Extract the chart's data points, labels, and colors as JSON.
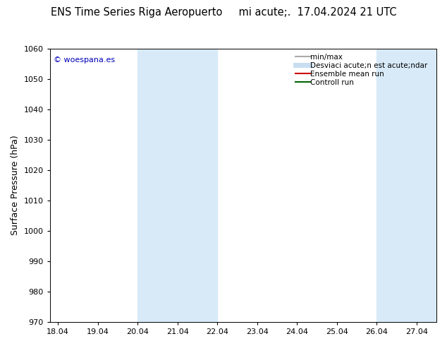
{
  "title": "ENS Time Series Riga Aeropuerto     mi acute;.  17.04.2024 21 UTC",
  "ylabel": "Surface Pressure (hPa)",
  "ylim": [
    970,
    1060
  ],
  "yticks": [
    970,
    980,
    990,
    1000,
    1010,
    1020,
    1030,
    1040,
    1050,
    1060
  ],
  "xtick_labels": [
    "18.04",
    "19.04",
    "20.04",
    "21.04",
    "22.04",
    "23.04",
    "24.04",
    "25.04",
    "26.04",
    "27.04"
  ],
  "xtick_positions": [
    0,
    1,
    2,
    3,
    4,
    5,
    6,
    7,
    8,
    9
  ],
  "xlim": [
    -0.2,
    9.5
  ],
  "shade_bands": [
    {
      "x_start": 2.0,
      "x_end": 4.0,
      "color": "#D8EAF8"
    },
    {
      "x_start": 8.0,
      "x_end": 9.5,
      "color": "#D8EAF8"
    }
  ],
  "watermark": "© woespana.es",
  "watermark_color": "#0000BB",
  "legend_entries": [
    {
      "label": "min/max",
      "color": "#AAAAAA",
      "lw": 1.5
    },
    {
      "label": "Desviaci acute;n est acute;ndar",
      "color": "#C8DDF0",
      "lw": 5
    },
    {
      "label": "Ensemble mean run",
      "color": "#CC0000",
      "lw": 1.5
    },
    {
      "label": "Controll run",
      "color": "#006600",
      "lw": 1.5
    }
  ],
  "bg_color": "#FFFFFF",
  "title_fontsize": 10.5,
  "ylabel_fontsize": 9,
  "tick_fontsize": 8,
  "legend_fontsize": 7.5,
  "watermark_fontsize": 8
}
